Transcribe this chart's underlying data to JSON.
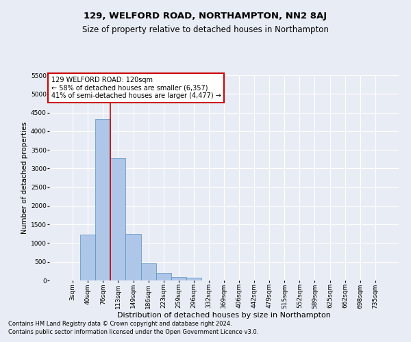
{
  "title": "129, WELFORD ROAD, NORTHAMPTON, NN2 8AJ",
  "subtitle": "Size of property relative to detached houses in Northampton",
  "xlabel": "Distribution of detached houses by size in Northampton",
  "ylabel": "Number of detached properties",
  "footnote1": "Contains HM Land Registry data © Crown copyright and database right 2024.",
  "footnote2": "Contains public sector information licensed under the Open Government Licence v3.0.",
  "annotation_line1": "129 WELFORD ROAD: 120sqm",
  "annotation_line2": "← 58% of detached houses are smaller (6,357)",
  "annotation_line3": "41% of semi-detached houses are larger (4,477) →",
  "bar_labels": [
    "3sqm",
    "40sqm",
    "76sqm",
    "113sqm",
    "149sqm",
    "186sqm",
    "223sqm",
    "259sqm",
    "296sqm",
    "332sqm",
    "369sqm",
    "406sqm",
    "442sqm",
    "479sqm",
    "515sqm",
    "552sqm",
    "589sqm",
    "625sqm",
    "662sqm",
    "698sqm",
    "735sqm"
  ],
  "bar_values": [
    0,
    1230,
    4330,
    3290,
    1250,
    460,
    200,
    100,
    70,
    0,
    0,
    0,
    0,
    0,
    0,
    0,
    0,
    0,
    0,
    0,
    0
  ],
  "bar_color": "#aec6e8",
  "bar_edge_color": "#5a8fc0",
  "vline_x": 2.5,
  "vline_color": "#cc0000",
  "ylim": [
    0,
    5500
  ],
  "yticks": [
    0,
    500,
    1000,
    1500,
    2000,
    2500,
    3000,
    3500,
    4000,
    4500,
    5000,
    5500
  ],
  "bg_color": "#e8edf5",
  "plot_bg_color": "#e8edf5",
  "annotation_box_color": "#ffffff",
  "annotation_box_edge": "#cc0000",
  "title_fontsize": 9.5,
  "subtitle_fontsize": 8.5,
  "xlabel_fontsize": 8,
  "ylabel_fontsize": 7.5,
  "tick_fontsize": 6.5,
  "annotation_fontsize": 7,
  "footnote_fontsize": 6
}
